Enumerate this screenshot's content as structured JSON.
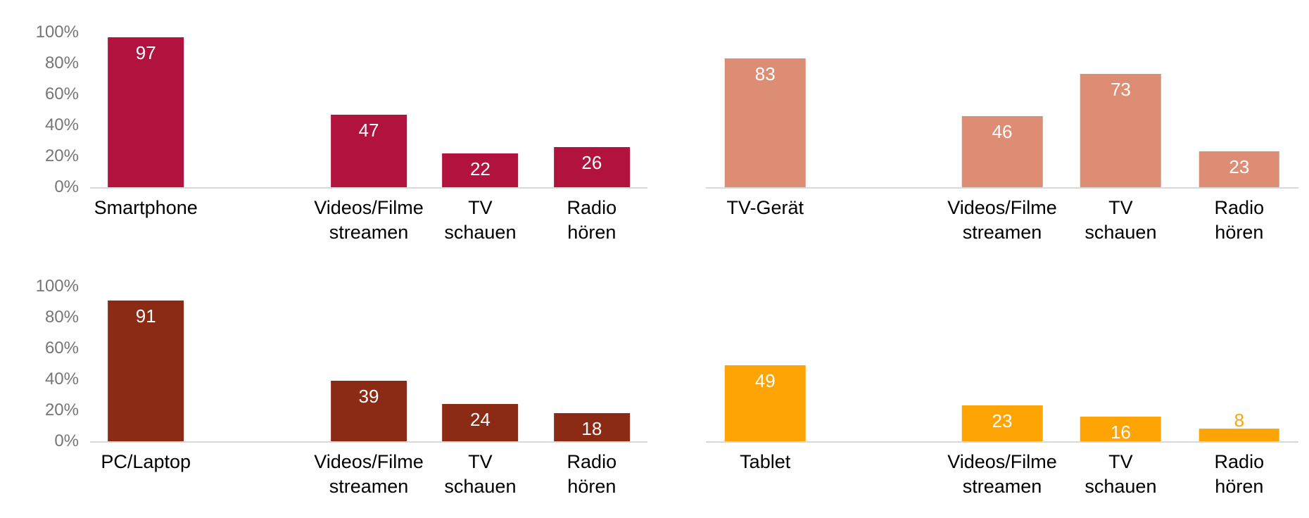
{
  "charts_common": {
    "y_axis_tick_color": "#767676",
    "baseline_color": "#D9D9D9",
    "category_label_color": "#000000",
    "value_label_color_inside": "#FFFFFF",
    "background_color": "#FFFFFF"
  },
  "chart_data": [
    {
      "type": "bar",
      "grid_position": "top-left",
      "color": "#B2123E",
      "show_y_axis": true,
      "y_tick_labels": [
        "100%",
        "80%",
        "60%",
        "40%",
        "20%",
        "0%"
      ],
      "ylim": [
        0,
        100
      ],
      "categories": [
        "Smartphone",
        "Videos/Filme\nstreamen",
        "TV\nschauen",
        "Radio\nhören"
      ],
      "values": [
        97,
        47,
        22,
        26
      ]
    },
    {
      "type": "bar",
      "grid_position": "top-right",
      "color": "#DE8D75",
      "show_y_axis": false,
      "ylim": [
        0,
        100
      ],
      "categories": [
        "TV-Gerät",
        "Videos/Filme\nstreamen",
        "TV\nschauen",
        "Radio\nhören"
      ],
      "values": [
        83,
        46,
        73,
        23
      ]
    },
    {
      "type": "bar",
      "grid_position": "bottom-left",
      "color": "#8B2A15",
      "show_y_axis": true,
      "y_tick_labels": [
        "100%",
        "80%",
        "60%",
        "40%",
        "20%",
        "0%"
      ],
      "ylim": [
        0,
        100
      ],
      "categories": [
        "PC/Laptop",
        "Videos/Filme\nstreamen",
        "TV\nschauen",
        "Radio\nhören"
      ],
      "values": [
        91,
        39,
        24,
        18
      ]
    },
    {
      "type": "bar",
      "grid_position": "bottom-right",
      "color": "#FFA405",
      "show_y_axis": false,
      "ylim": [
        0,
        100
      ],
      "categories": [
        "Tablet",
        "Videos/Filme\nstreamen",
        "TV\nschauen",
        "Radio\nhören"
      ],
      "values": [
        49,
        23,
        16,
        8
      ]
    }
  ]
}
